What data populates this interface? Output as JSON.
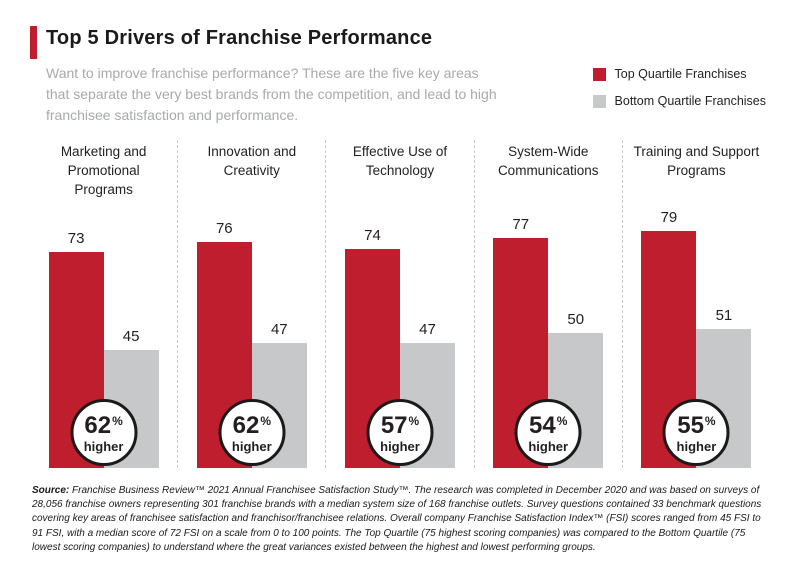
{
  "colors": {
    "accent_red": "#BF1E2E",
    "bar_gray": "#C7C8CA",
    "subtitle_gray": "#A7A9AC"
  },
  "header": {
    "title": "Top 5 Drivers of Franchise Performance",
    "subtitle": "Want to improve franchise performance? These are the five key areas that separate the very best brands from the competition, and lead to high franchisee satisfaction and performance."
  },
  "legend": {
    "items": [
      {
        "label": "Top Quartile Franchises",
        "color": "#BF1E2E"
      },
      {
        "label": "Bottom Quartile Franchises",
        "color": "#C7C8CA"
      }
    ]
  },
  "chart_data": {
    "type": "bar",
    "title": "Top 5 Drivers of Franchise Performance",
    "categories": [
      "Marketing and Promotional Programs",
      "Innovation and Creativity",
      "Effective Use of Technology",
      "System-Wide Communications",
      "Training and Support Programs"
    ],
    "series": [
      {
        "name": "Top Quartile Franchises",
        "color": "#BF1E2E",
        "values": [
          73,
          76,
          74,
          77,
          79
        ]
      },
      {
        "name": "Bottom Quartile Franchises",
        "color": "#C7C8CA",
        "values": [
          45,
          47,
          47,
          50,
          51
        ]
      }
    ],
    "badges": [
      {
        "value": "62",
        "suffix": "%",
        "word": "higher"
      },
      {
        "value": "62",
        "suffix": "%",
        "word": "higher"
      },
      {
        "value": "57",
        "suffix": "%",
        "word": "higher"
      },
      {
        "value": "54",
        "suffix": "%",
        "word": "higher"
      },
      {
        "value": "55",
        "suffix": "%",
        "word": "higher"
      }
    ],
    "ylim": [
      0,
      100
    ],
    "grid": false,
    "legend_position": "top-right"
  },
  "footer": {
    "source_label": "Source:",
    "source_text": " Franchise Business Review™ 2021 Annual Franchisee Satisfaction Study™. The research was completed in December 2020 and was based on surveys of 28,056 franchise owners representing 301 franchise brands with a median system size of 168 franchise outlets. Survey questions contained 33 benchmark questions covering key areas of franchisee satisfaction and franchisor/franchisee relations. Overall company Franchise Satisfaction Index™ (FSI) scores ranged from 45 FSI to 91 FSI, with a median score of 72 FSI on a scale from 0 to 100 points. The Top Quartile (75 highest scoring companies) was compared to the Bottom Quartile (75 lowest scoring companies) to understand where the great variances existed between the highest and lowest performing groups."
  }
}
